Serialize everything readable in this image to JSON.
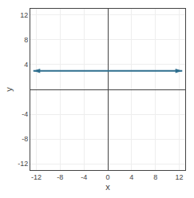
{
  "chart_data": {
    "type": "line",
    "x": [
      -12.5,
      12.5
    ],
    "values": [
      3,
      3
    ],
    "color": "#2e6e8e",
    "marker": "arrow",
    "xlabel": "x",
    "ylabel": "y",
    "xlim": [
      -13,
      13
    ],
    "ylim": [
      -13,
      13
    ],
    "xticks": [
      -12,
      -8,
      -4,
      0,
      4,
      8,
      12
    ],
    "yticks": [
      -12,
      -8,
      -4,
      4,
      8,
      12
    ],
    "grid": true
  }
}
